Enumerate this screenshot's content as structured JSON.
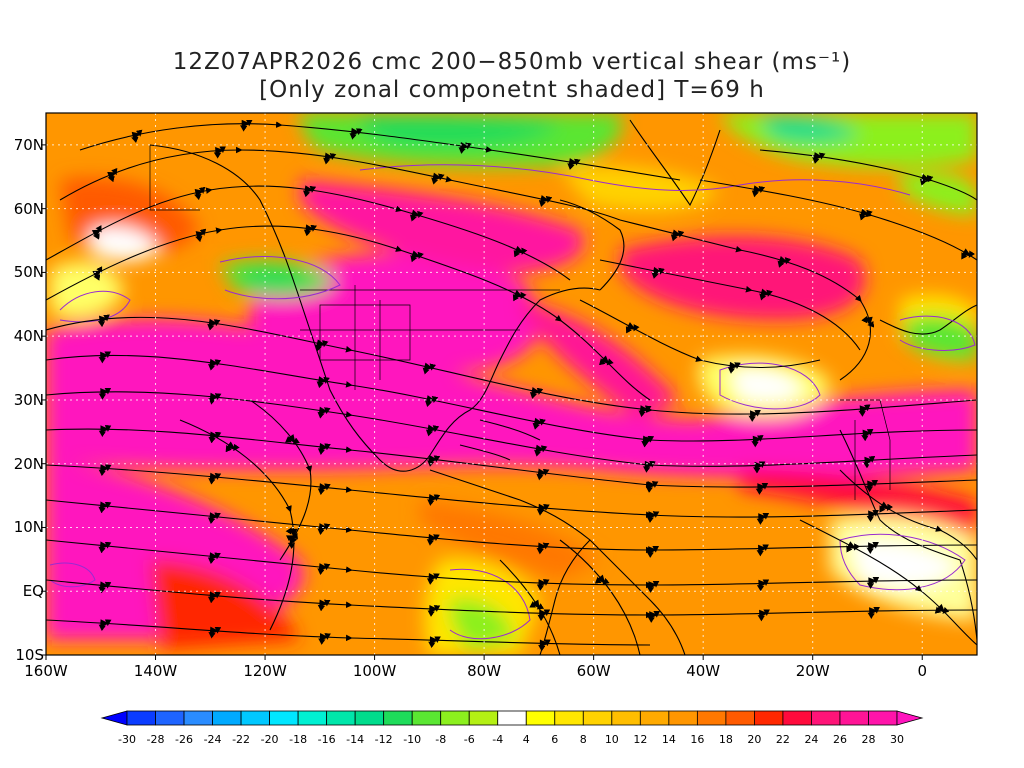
{
  "title": {
    "line1": "12Z07APR2026 cmc 200−850mb vertical shear (ms⁻¹)",
    "line2": "[Only zonal componetnt shaded] T=69 h"
  },
  "map": {
    "lon_range": [
      -160,
      10
    ],
    "lat_range": [
      -10,
      75
    ],
    "lat_labels": [
      {
        "text": "70N",
        "lat": 70
      },
      {
        "text": "60N",
        "lat": 60
      },
      {
        "text": "50N",
        "lat": 50
      },
      {
        "text": "40N",
        "lat": 40
      },
      {
        "text": "30N",
        "lat": 30
      },
      {
        "text": "20N",
        "lat": 20
      },
      {
        "text": "10N",
        "lat": 10
      },
      {
        "text": "EQ",
        "lat": 0
      },
      {
        "text": "10S",
        "lat": -10
      }
    ],
    "lon_labels": [
      {
        "text": "160W",
        "lon": -160
      },
      {
        "text": "140W",
        "lon": -140
      },
      {
        "text": "120W",
        "lon": -120
      },
      {
        "text": "100W",
        "lon": -100
      },
      {
        "text": "80W",
        "lon": -80
      },
      {
        "text": "60W",
        "lon": -60
      },
      {
        "text": "40W",
        "lon": -40
      },
      {
        "text": "20W",
        "lon": -20
      },
      {
        "text": "0",
        "lon": 0
      }
    ],
    "grid_lines": "dotted",
    "streamlines": true
  },
  "colorbar": {
    "levels": [
      "-30",
      "-28",
      "-26",
      "-24",
      "-22",
      "-20",
      "-18",
      "-16",
      "-14",
      "-12",
      "-10",
      "-8",
      "-6",
      "-4",
      "4",
      "6",
      "8",
      "10",
      "12",
      "14",
      "16",
      "18",
      "20",
      "22",
      "24",
      "26",
      "28",
      "30"
    ],
    "colors": [
      "#0000ff",
      "#0a3cff",
      "#1e64ff",
      "#2a8cff",
      "#00aaff",
      "#00c8ff",
      "#00e6ff",
      "#00f0d2",
      "#00e6aa",
      "#00dc8c",
      "#1edc5a",
      "#5ae632",
      "#8cf01e",
      "#b4f014",
      "#ffffff",
      "#ffff00",
      "#ffe600",
      "#ffd200",
      "#ffbe00",
      "#ffaa00",
      "#ff9600",
      "#ff7800",
      "#ff5a00",
      "#ff2800",
      "#ff0a3c",
      "#ff1478",
      "#ff1496",
      "#ff14aa",
      "#ff14be"
    ]
  }
}
